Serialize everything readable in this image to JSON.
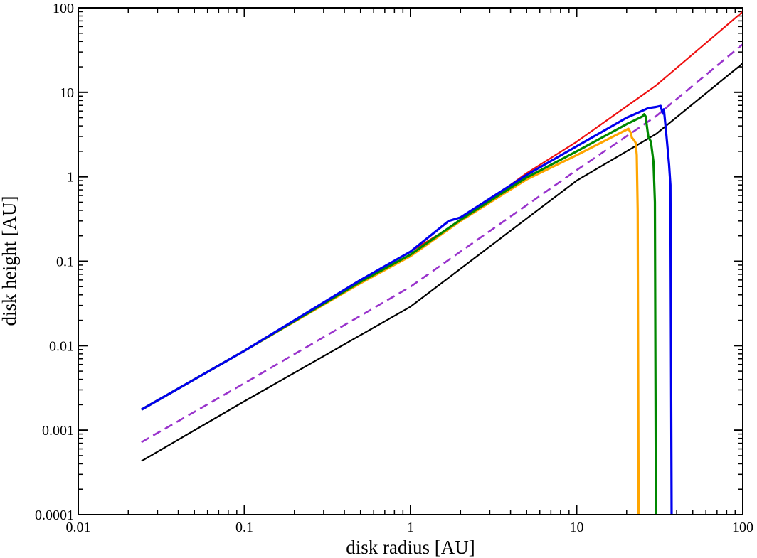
{
  "chart_data": {
    "type": "line",
    "xlabel": "disk radius [AU]",
    "ylabel": "disk height [AU]",
    "x_scale": "log",
    "y_scale": "log",
    "xlim": [
      0.01,
      100
    ],
    "ylim": [
      0.0001,
      100
    ],
    "grid": false,
    "x_tick_labels": [
      "0.01",
      "0.1",
      "1",
      "10",
      "100"
    ],
    "y_tick_labels": [
      "0.0001",
      "0.001",
      "0.01",
      "0.1",
      "1",
      "10",
      "100"
    ],
    "series": [
      {
        "color": "#ee1111",
        "style": "solid",
        "width": 2.2,
        "points": [
          [
            0.024,
            0.00175
          ],
          [
            0.1,
            0.0087
          ],
          [
            0.5,
            0.06
          ],
          [
            1.0,
            0.13
          ],
          [
            2.0,
            0.3
          ],
          [
            5.0,
            1.1
          ],
          [
            10,
            2.6
          ],
          [
            30,
            12
          ],
          [
            100,
            90
          ]
        ]
      },
      {
        "color": "#000000",
        "style": "solid",
        "width": 2.2,
        "points": [
          [
            0.024,
            0.00043
          ],
          [
            0.1,
            0.0022
          ],
          [
            1.0,
            0.029
          ],
          [
            10,
            0.9
          ],
          [
            30,
            3.2
          ],
          [
            100,
            22
          ]
        ]
      },
      {
        "color": "#9933cc",
        "style": "dashed",
        "width": 2.6,
        "points": [
          [
            0.024,
            0.00072
          ],
          [
            0.1,
            0.0036
          ],
          [
            1.0,
            0.05
          ],
          [
            10,
            1.2
          ],
          [
            30,
            5.2
          ],
          [
            100,
            37
          ]
        ]
      },
      {
        "color": "#ffa500",
        "style": "solid",
        "width": 3.2,
        "points": [
          [
            0.024,
            0.00175
          ],
          [
            0.1,
            0.0087
          ],
          [
            0.5,
            0.055
          ],
          [
            1.0,
            0.115
          ],
          [
            2.0,
            0.3
          ],
          [
            5.0,
            0.93
          ],
          [
            10,
            1.8
          ],
          [
            20.5,
            3.7
          ],
          [
            21.2,
            3.3
          ],
          [
            21.5,
            2.9
          ],
          [
            22.2,
            2.7
          ],
          [
            22.7,
            2.5
          ],
          [
            23.0,
            1.8
          ],
          [
            23.3,
            0.4
          ],
          [
            23.6,
            0.0001
          ]
        ]
      },
      {
        "color": "#008800",
        "style": "solid",
        "width": 3.2,
        "points": [
          [
            0.024,
            0.00175
          ],
          [
            0.1,
            0.0087
          ],
          [
            0.5,
            0.057
          ],
          [
            1.0,
            0.12
          ],
          [
            2.0,
            0.31
          ],
          [
            5.0,
            0.98
          ],
          [
            10,
            2.0
          ],
          [
            20,
            4.2
          ],
          [
            25,
            5.2
          ],
          [
            25.5,
            5.5
          ],
          [
            26,
            5.2
          ],
          [
            27,
            3.0
          ],
          [
            28,
            2.6
          ],
          [
            29,
            1.5
          ],
          [
            29.6,
            0.5
          ],
          [
            30.0,
            0.0001
          ]
        ]
      },
      {
        "color": "#0000ee",
        "style": "solid",
        "width": 3.2,
        "points": [
          [
            0.024,
            0.00175
          ],
          [
            0.1,
            0.0087
          ],
          [
            0.5,
            0.06
          ],
          [
            1.0,
            0.13
          ],
          [
            1.7,
            0.3
          ],
          [
            2.0,
            0.33
          ],
          [
            5.0,
            1.05
          ],
          [
            10,
            2.3
          ],
          [
            20,
            5.0
          ],
          [
            27,
            6.5
          ],
          [
            30,
            6.7
          ],
          [
            32,
            6.9
          ],
          [
            33,
            5.6
          ],
          [
            33.5,
            6.3
          ],
          [
            34.5,
            3.5
          ],
          [
            36,
            1.4
          ],
          [
            36.7,
            0.8
          ],
          [
            37.3,
            0.0001
          ]
        ]
      }
    ]
  }
}
